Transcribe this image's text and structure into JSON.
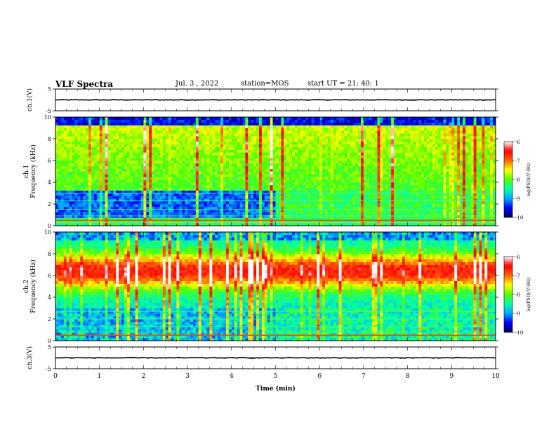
{
  "header": {
    "title": "VLF Spectra",
    "date": "Jul. 3 , 2022",
    "station": "station=MOS",
    "start": "start UT =  21: 40: 1"
  },
  "chart_data": [
    {
      "type": "line",
      "panel": "ch1-waveform",
      "ylabel": "ch.1(V)",
      "ylim": [
        -5,
        5
      ],
      "yticks": [
        "5",
        "-5"
      ],
      "xlim": [
        0,
        10
      ],
      "series": [
        {
          "values": [
            0,
            0
          ]
        }
      ]
    },
    {
      "type": "heatmap",
      "panel": "ch1-spectrogram",
      "ylabel": "ch.1\nFrequency (kHz)",
      "ylim": [
        0,
        10
      ],
      "yticks": [
        "0",
        "2",
        "4",
        "6",
        "8",
        "10"
      ],
      "xlim": [
        0,
        10
      ],
      "colorbar": {
        "label": "log(PSD)(V²/Hz)",
        "range": [
          -10,
          -6
        ],
        "ticks": [
          "-6",
          "-7",
          "-8",
          "-9",
          "-10"
        ]
      }
    },
    {
      "type": "heatmap",
      "panel": "ch2-spectrogram",
      "ylabel": "ch.2\nFrequency (kHz)",
      "ylim": [
        0,
        10
      ],
      "yticks": [
        "0",
        "2",
        "4",
        "6",
        "8",
        "10"
      ],
      "xlim": [
        0,
        10
      ],
      "colorbar": {
        "label": "log(PSD)(V²/Hz)",
        "range": [
          -10,
          -6
        ],
        "ticks": [
          "-6",
          "-7",
          "-8",
          "-9",
          "-10"
        ]
      }
    },
    {
      "type": "line",
      "panel": "ch3-waveform",
      "ylabel": "ch.3(V)",
      "ylim": [
        -5,
        5
      ],
      "yticks": [
        "5",
        "-5"
      ],
      "xlim": [
        0,
        10
      ],
      "xlabel": "Time (min)",
      "xticks": [
        "0",
        "1",
        "2",
        "3",
        "4",
        "5",
        "6",
        "7",
        "8",
        "9",
        "10"
      ],
      "series": [
        {
          "values": [
            0,
            0
          ]
        }
      ]
    }
  ],
  "colors": {
    "colormap": [
      "#000060",
      "#0000ff",
      "#00aaff",
      "#00ffaa",
      "#55ff00",
      "#ffff00",
      "#ff6600",
      "#ff0000",
      "#ffffff"
    ]
  }
}
